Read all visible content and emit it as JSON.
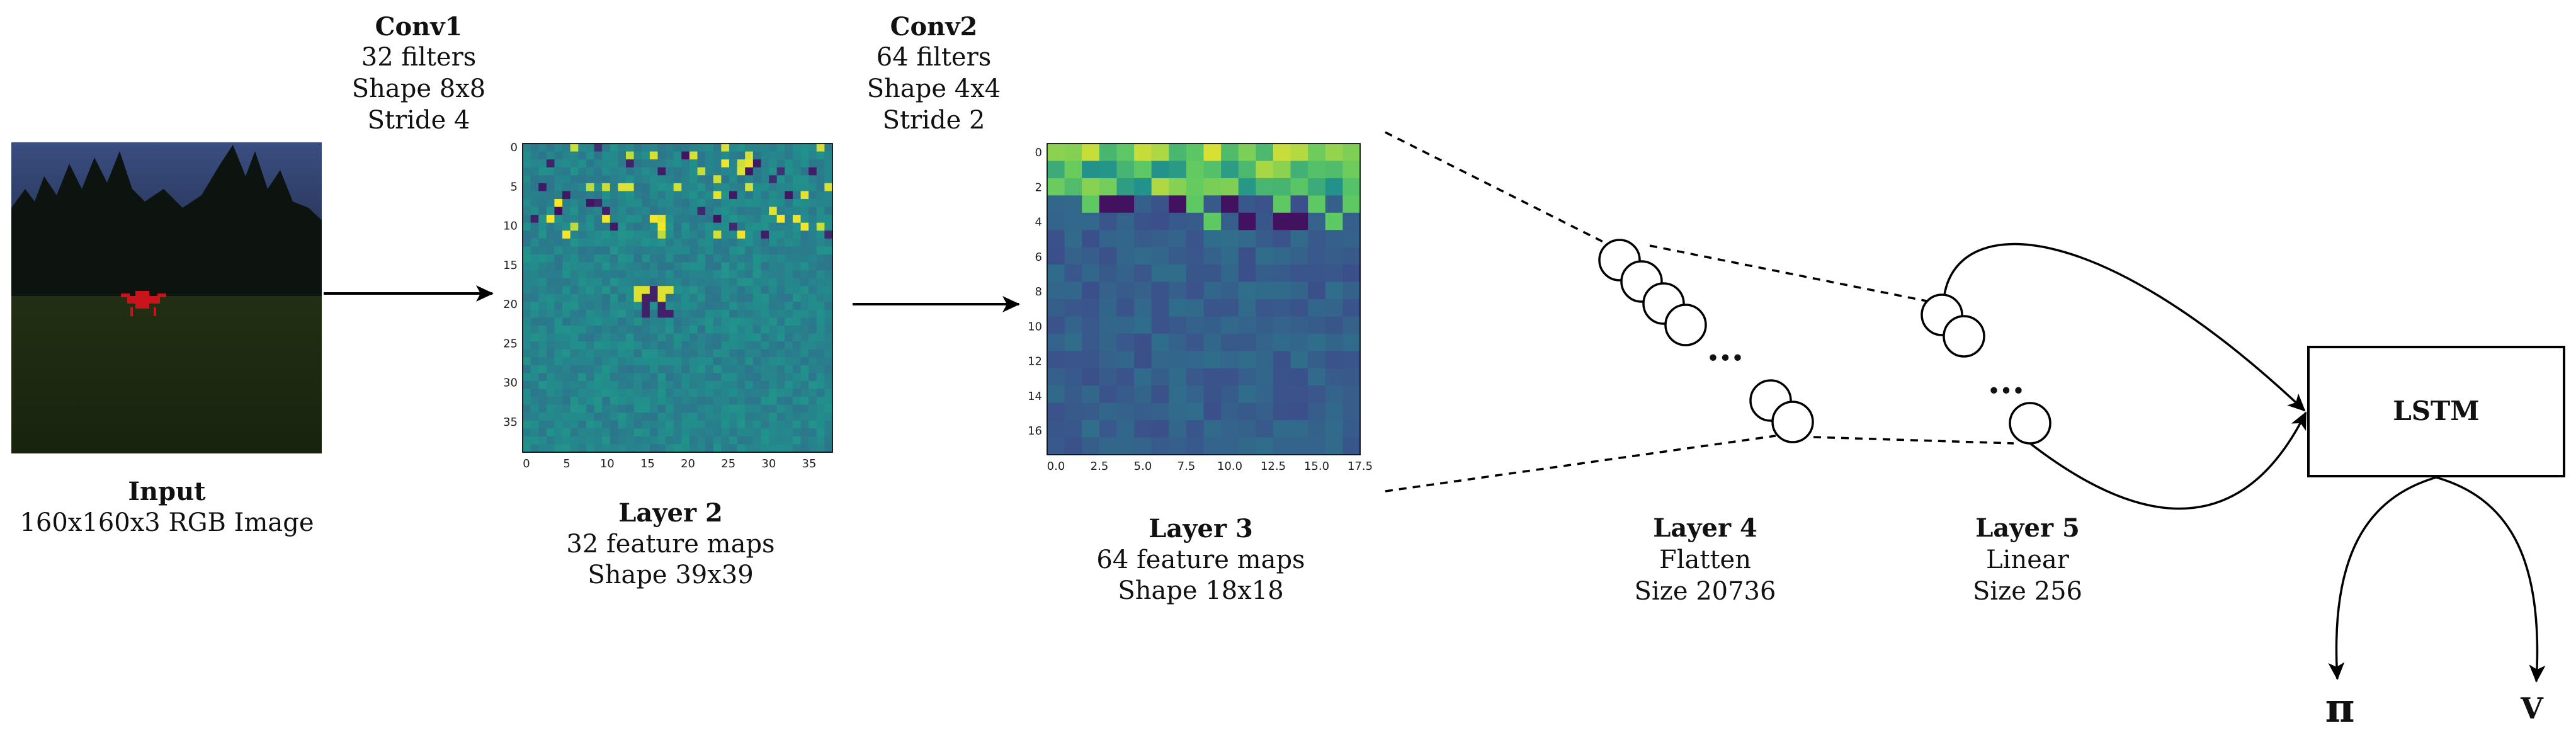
{
  "conv1": {
    "title": "Conv1",
    "lines": [
      "32 filters",
      "Shape 8x8",
      "Stride 4"
    ]
  },
  "conv2": {
    "title": "Conv2",
    "lines": [
      "64 filters",
      "Shape 4x4",
      "Stride 2"
    ]
  },
  "input": {
    "title": "Input",
    "lines": [
      "160x160x3 RGB Image"
    ]
  },
  "layer2": {
    "title": "Layer 2",
    "lines": [
      "32 feature maps",
      "Shape 39x39"
    ],
    "x_ticks": [
      "0",
      "5",
      "10",
      "15",
      "20",
      "25",
      "30",
      "35"
    ],
    "y_ticks": [
      "0",
      "5",
      "10",
      "15",
      "20",
      "25",
      "30",
      "35"
    ]
  },
  "layer3": {
    "title": "Layer 3",
    "lines": [
      "64 feature maps",
      "Shape 18x18"
    ],
    "x_ticks": [
      "0.0",
      "2.5",
      "5.0",
      "7.5",
      "10.0",
      "12.5",
      "15.0",
      "17.5"
    ],
    "y_ticks": [
      "0",
      "2",
      "4",
      "6",
      "8",
      "10",
      "12",
      "14",
      "16"
    ]
  },
  "layer4": {
    "title": "Layer 4",
    "lines": [
      "Flatten",
      "Size 20736"
    ],
    "ellipsis": "..."
  },
  "layer5": {
    "title": "Layer 5",
    "lines": [
      "Linear",
      "Size 256"
    ],
    "ellipsis": "..."
  },
  "lstm": {
    "label": "LSTM"
  },
  "outputs": {
    "pi": "π",
    "v": "V"
  },
  "colors": {
    "heatmap_base": "#3a7f8e",
    "heatmap_high": "#f1e51d",
    "heatmap_low": "#3d0b55",
    "sky": "#2e3e6a",
    "grass": "#1e2e12",
    "drone": "#c8141a"
  }
}
